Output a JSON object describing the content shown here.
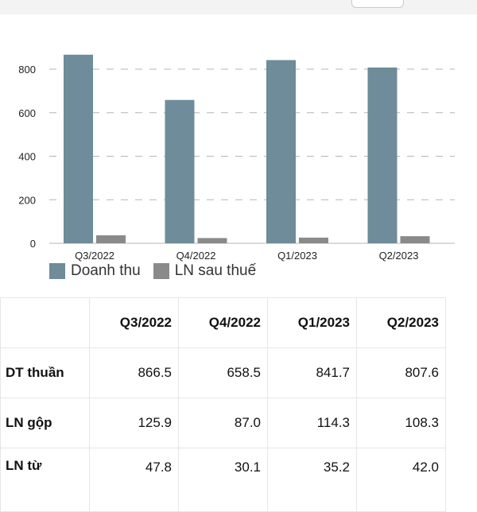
{
  "chart_data": {
    "type": "bar",
    "categories": [
      "Q3/2022",
      "Q4/2022",
      "Q1/2023",
      "Q2/2023"
    ],
    "series": [
      {
        "name": "Doanh thu",
        "values": [
          866.5,
          658.5,
          841.7,
          807.6
        ],
        "color": "#6e8c99"
      },
      {
        "name": "LN sau thuế",
        "values": [
          36.5,
          24.0,
          26.0,
          32.5
        ],
        "color": "#8a8a8a"
      }
    ],
    "ylim": [
      0,
      800
    ],
    "yticks": [
      0,
      200,
      400,
      600,
      800
    ],
    "grid": true,
    "legend_position": "bottom-left",
    "title": "",
    "xlabel": "",
    "ylabel": ""
  },
  "table": {
    "headers": [
      "",
      "Q3/2022",
      "Q4/2022",
      "Q1/2023",
      "Q2/2023"
    ],
    "rows": [
      {
        "label": "DT thuần",
        "values": [
          "866.5",
          "658.5",
          "841.7",
          "807.6"
        ]
      },
      {
        "label": "LN gộp",
        "values": [
          "125.9",
          "87.0",
          "114.3",
          "108.3"
        ]
      },
      {
        "label": "LN từ",
        "values": [
          "47.8",
          "30.1",
          "35.2",
          "42.0"
        ]
      }
    ]
  },
  "colors": {
    "accent_bar": "#6e8c99",
    "secondary_bar": "#8a8a8a"
  }
}
